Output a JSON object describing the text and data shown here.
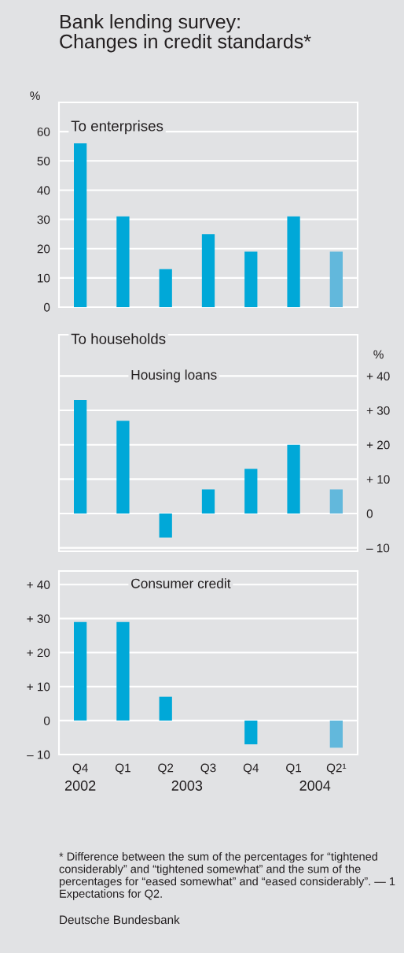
{
  "chart_data": [
    {
      "type": "bar",
      "title": "Bank lending survey:\nChanges in credit standards*",
      "subtitle": "To enterprises",
      "ylabel": "%",
      "categories": [
        null,
        null,
        null,
        null,
        null,
        null,
        null
      ],
      "values": [
        56,
        31,
        13,
        25,
        19,
        31,
        19
      ],
      "colors": [
        "#00a8d8",
        "#00a8d8",
        "#00a8d8",
        "#00a8d8",
        "#00a8d8",
        "#00a8d8",
        "#62b8dc"
      ],
      "ylim": [
        0,
        70
      ],
      "yticks": [
        0,
        10,
        20,
        30,
        40,
        50,
        60
      ],
      "grid": "y",
      "tick_labels": "y"
    },
    {
      "type": "bar",
      "title": "To households",
      "subtitle": "Housing loans",
      "ylabel": "%",
      "categories": [
        null,
        null,
        null,
        null,
        null,
        null,
        null
      ],
      "values": [
        33,
        27,
        -7,
        7,
        13,
        20,
        7
      ],
      "colors": [
        "#00a8d8",
        "#00a8d8",
        "#00a8d8",
        "#00a8d8",
        "#00a8d8",
        "#00a8d8",
        "#62b8dc"
      ],
      "ylim": [
        -11,
        52
      ],
      "yticks": [
        {
          "value": -10,
          "label": "– 10"
        },
        0,
        {
          "value": 10,
          "label": "+ 10"
        },
        {
          "value": 20,
          "label": "+ 20"
        },
        {
          "value": 30,
          "label": "+ 30"
        },
        {
          "value": 40,
          "label": "+ 40"
        }
      ],
      "grid": "y",
      "tick_labels": "y"
    },
    {
      "type": "bar",
      "subtitle": "Consumer credit",
      "categories": [
        "Q4",
        "Q1",
        "Q2",
        "Q3",
        "Q4",
        "Q1",
        "Q2¹"
      ],
      "values": [
        29,
        29,
        7,
        0,
        -7,
        0,
        -8
      ],
      "colors": [
        "#00a8d8",
        "#00a8d8",
        "#00a8d8",
        "#00a8d8",
        "#00a8d8",
        "#00a8d8",
        "#62b8dc"
      ],
      "ylim": [
        -10,
        44
      ],
      "yticks": [
        {
          "value": -10,
          "label": "– 10"
        },
        0,
        {
          "value": 10,
          "label": "+ 10"
        },
        {
          "value": 20,
          "label": "+ 20"
        },
        {
          "value": 30,
          "label": "+ 30"
        },
        {
          "value": 40,
          "label": "+ 40"
        }
      ],
      "grid": "y",
      "annotations": [
        "2002",
        "2003",
        "2004",
        "* Difference between the sum of the percentages for “tightened considerably” and “tightened somewhat” and the sum of the percentages for “eased somewhat” and “eased considerably”. — 1 Expectations for Q2.",
        "Deutsche Bundesbank"
      ]
    }
  ]
}
